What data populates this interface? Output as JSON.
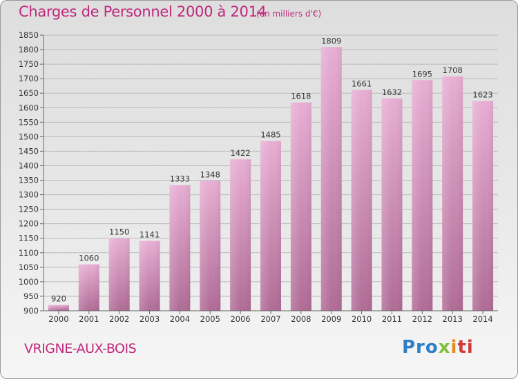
{
  "header": {
    "title": "Charges de Personnel 2000 à 2014",
    "unit": "(en milliers d'€)"
  },
  "footer": {
    "town": "VRIGNE-AUX-BOIS",
    "logo": {
      "p1": "Pro",
      "p2": "x",
      "p3": "i",
      "p4": "ti"
    }
  },
  "colors": {
    "title": "#c0287d",
    "bar_top": "#e8aed4",
    "bar_bottom": "#b06c96",
    "gridline": "#b9b9b9",
    "axis": "#666666"
  },
  "chart_data": {
    "type": "bar",
    "title": "Charges de Personnel 2000 à 2014",
    "subtitle": "(en milliers d'€)",
    "categories": [
      "2000",
      "2001",
      "2002",
      "2003",
      "2004",
      "2005",
      "2006",
      "2007",
      "2008",
      "2009",
      "2010",
      "2011",
      "2012",
      "2013",
      "2014"
    ],
    "values": [
      920,
      1060,
      1150,
      1141,
      1333,
      1348,
      1422,
      1485,
      1618,
      1809,
      1661,
      1632,
      1695,
      1708,
      1623
    ],
    "ylim": [
      900,
      1850
    ],
    "yticks": [
      900,
      950,
      1000,
      1050,
      1100,
      1150,
      1200,
      1250,
      1300,
      1350,
      1400,
      1450,
      1500,
      1550,
      1600,
      1650,
      1700,
      1750,
      1800,
      1850
    ],
    "grid": true,
    "data_labels": true,
    "legend": "none"
  }
}
